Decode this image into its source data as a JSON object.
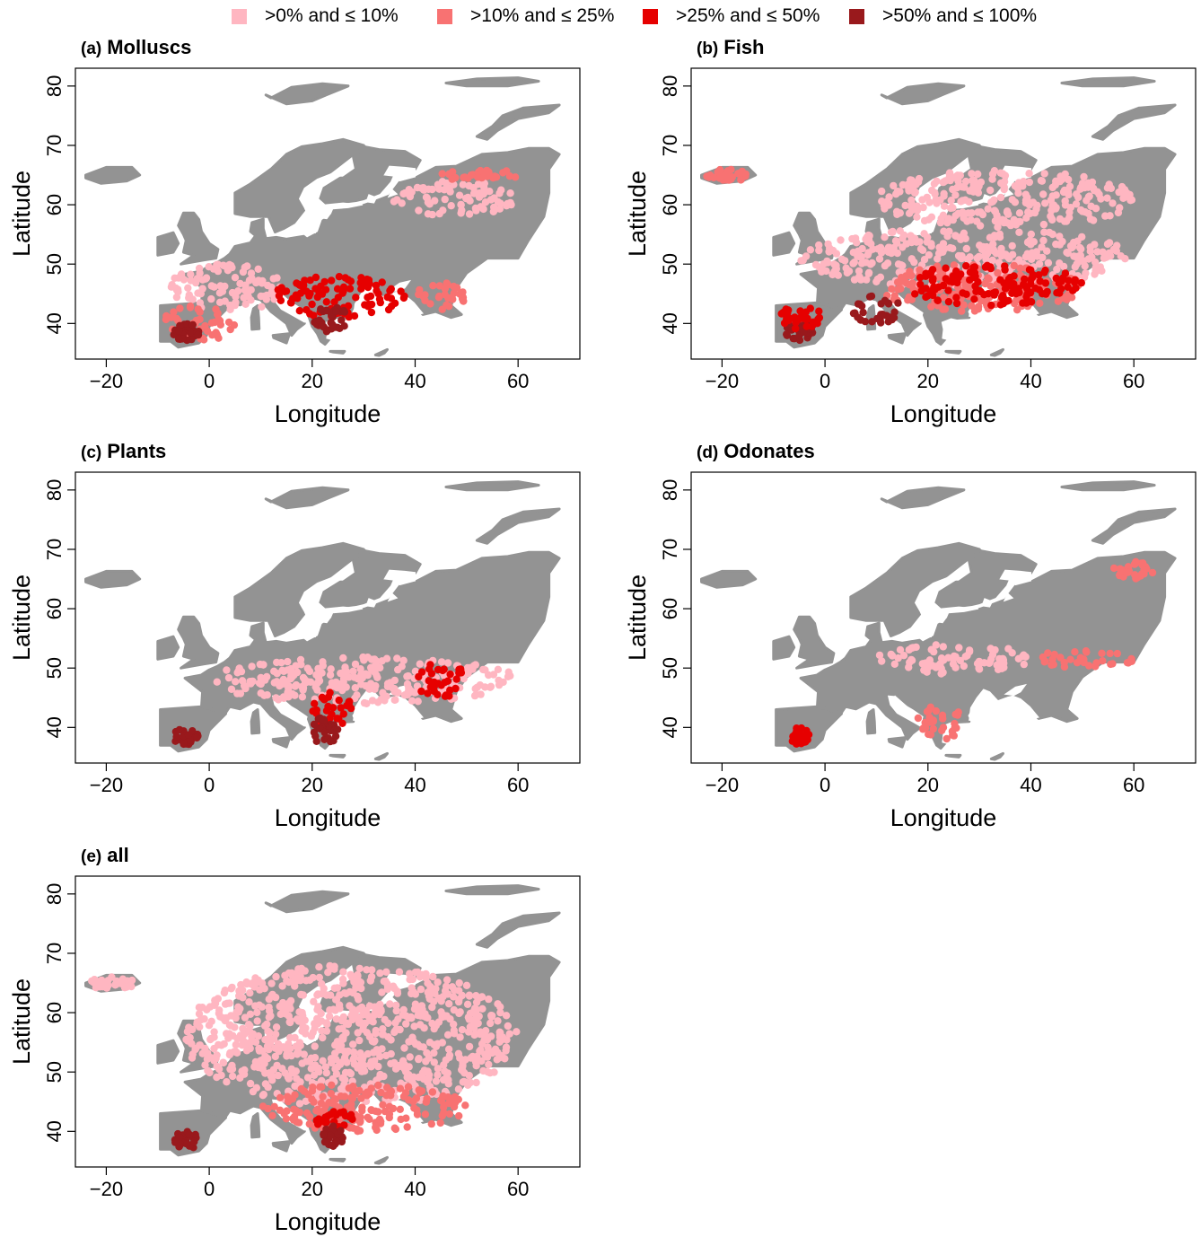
{
  "legend": {
    "items": [
      {
        "label": ">0% and ≤ 10%",
        "color": "#ffb6c1"
      },
      {
        "label": ">10% and ≤ 25%",
        "color": "#f87272"
      },
      {
        "label": ">25% and ≤ 50%",
        "color": "#e60000"
      },
      {
        "label": ">50% and ≤ 100%",
        "color": "#99191c"
      }
    ]
  },
  "colors": {
    "land": "#939393",
    "classes": [
      "#ffb6c1",
      "#f87272",
      "#e60000",
      "#99191c"
    ]
  },
  "axes": {
    "xlabel": "Longitude",
    "ylabel": "Latitude",
    "xticks": [
      "−20",
      "0",
      "20",
      "40",
      "60"
    ],
    "yticks": [
      "40",
      "50",
      "60",
      "70",
      "80"
    ],
    "xlim": [
      -26,
      72
    ],
    "ylim": [
      34,
      83
    ]
  },
  "panels": [
    {
      "tag": "(a)",
      "name": "Molluscs"
    },
    {
      "tag": "(b)",
      "name": "Fish"
    },
    {
      "tag": "(c)",
      "name": "Plants"
    },
    {
      "tag": "(d)",
      "name": "Odonates"
    },
    {
      "tag": "(e)",
      "name": "all"
    }
  ],
  "chart_data": {
    "type": "scatter",
    "description_free": true,
    "x_unit": "Longitude",
    "y_unit": "Latitude",
    "classes": [
      ">0% and ≤ 10%",
      ">10% and ≤ 25%",
      ">25% and ≤ 50%",
      ">50% and ≤ 100%"
    ],
    "panels": [
      {
        "name": "Molluscs",
        "regions": [
          {
            "class": 0,
            "lon": [
              35,
              60
            ],
            "lat": [
              58,
              64
            ]
          },
          {
            "class": 1,
            "lon": [
              45,
              60
            ],
            "lat": [
              64,
              66
            ]
          },
          {
            "class": 0,
            "lon": [
              -8,
              15
            ],
            "lat": [
              42,
              50
            ]
          },
          {
            "class": 1,
            "lon": [
              -9,
              5
            ],
            "lat": [
              37,
              43
            ]
          },
          {
            "class": 2,
            "lon": [
              12,
              38
            ],
            "lat": [
              41,
              48
            ]
          },
          {
            "class": 3,
            "lon": [
              20,
              27
            ],
            "lat": [
              38,
              43
            ]
          },
          {
            "class": 3,
            "lon": [
              -7,
              -2
            ],
            "lat": [
              37,
              40
            ]
          },
          {
            "class": 1,
            "lon": [
              40,
              50
            ],
            "lat": [
              42,
              47
            ]
          }
        ]
      },
      {
        "name": "Fish",
        "regions": [
          {
            "class": 1,
            "lon": [
              -24,
              -14
            ],
            "lat": [
              64,
              66
            ]
          },
          {
            "class": 0,
            "lon": [
              -5,
              60
            ],
            "lat": [
              46,
              56
            ]
          },
          {
            "class": 0,
            "lon": [
              10,
              60
            ],
            "lat": [
              56,
              66
            ]
          },
          {
            "class": 1,
            "lon": [
              10,
              50
            ],
            "lat": [
              42,
              50
            ]
          },
          {
            "class": 2,
            "lon": [
              15,
              50
            ],
            "lat": [
              43,
              50
            ]
          },
          {
            "class": 3,
            "lon": [
              5,
              15
            ],
            "lat": [
              40,
              45
            ]
          },
          {
            "class": 3,
            "lon": [
              -8,
              -2
            ],
            "lat": [
              37,
              41
            ]
          },
          {
            "class": 2,
            "lon": [
              -9,
              0
            ],
            "lat": [
              39,
              43
            ]
          }
        ]
      },
      {
        "name": "Plants",
        "regions": [
          {
            "class": 0,
            "lon": [
              0,
              60
            ],
            "lat": [
              44,
              52
            ]
          },
          {
            "class": 2,
            "lon": [
              40,
              50
            ],
            "lat": [
              45,
              51
            ]
          },
          {
            "class": 2,
            "lon": [
              20,
              28
            ],
            "lat": [
              40,
              46
            ]
          },
          {
            "class": 3,
            "lon": [
              -7,
              -2
            ],
            "lat": [
              37,
              40
            ]
          },
          {
            "class": 3,
            "lon": [
              20,
              25
            ],
            "lat": [
              37,
              42
            ]
          }
        ]
      },
      {
        "name": "Odonates",
        "regions": [
          {
            "class": 1,
            "lon": [
              56,
              64
            ],
            "lat": [
              65,
              68
            ]
          },
          {
            "class": 1,
            "lon": [
              40,
              60
            ],
            "lat": [
              50,
              53
            ]
          },
          {
            "class": 0,
            "lon": [
              10,
              40
            ],
            "lat": [
              49,
              54
            ]
          },
          {
            "class": 2,
            "lon": [
              -7,
              -3
            ],
            "lat": [
              37,
              40
            ]
          },
          {
            "class": 1,
            "lon": [
              18,
              28
            ],
            "lat": [
              38,
              44
            ]
          }
        ]
      },
      {
        "name": "all",
        "regions": [
          {
            "class": 0,
            "lon": [
              -5,
              60
            ],
            "lat": [
              44,
              68
            ]
          },
          {
            "class": 0,
            "lon": [
              -24,
              -14
            ],
            "lat": [
              64,
              66
            ]
          },
          {
            "class": 1,
            "lon": [
              10,
              50
            ],
            "lat": [
              40,
              48
            ]
          },
          {
            "class": 2,
            "lon": [
              20,
              28
            ],
            "lat": [
              40,
              44
            ]
          },
          {
            "class": 3,
            "lon": [
              -7,
              -2
            ],
            "lat": [
              37,
              40
            ]
          },
          {
            "class": 3,
            "lon": [
              22,
              26
            ],
            "lat": [
              37,
              41
            ]
          }
        ]
      }
    ]
  }
}
